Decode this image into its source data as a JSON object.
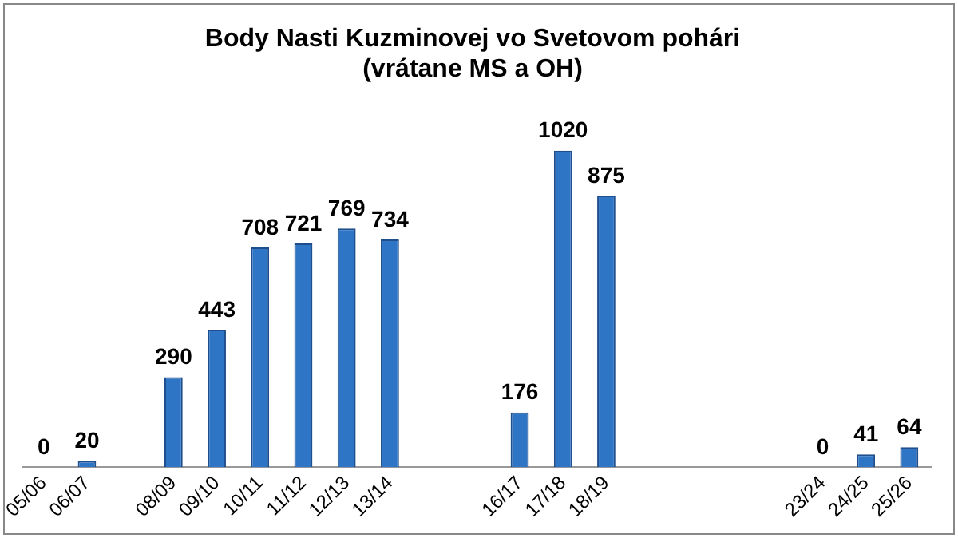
{
  "chart_data": {
    "type": "bar",
    "title": "Body Nasti Kuzminovej vo Svetovom pohári\n(vrátane MS a OH)",
    "categories": [
      "05/06",
      "06/07",
      null,
      "08/09",
      "09/10",
      "10/11",
      "11/12",
      "12/13",
      "13/14",
      null,
      null,
      "16/17",
      "17/18",
      "18/19",
      null,
      null,
      null,
      null,
      "23/24",
      "24/25",
      "25/26"
    ],
    "values": [
      0,
      20,
      null,
      290,
      443,
      708,
      721,
      769,
      734,
      null,
      null,
      176,
      1020,
      875,
      null,
      null,
      null,
      null,
      0,
      41,
      64
    ],
    "color": "#2e75c6",
    "data_labels": true,
    "grid": false,
    "legend": false
  }
}
